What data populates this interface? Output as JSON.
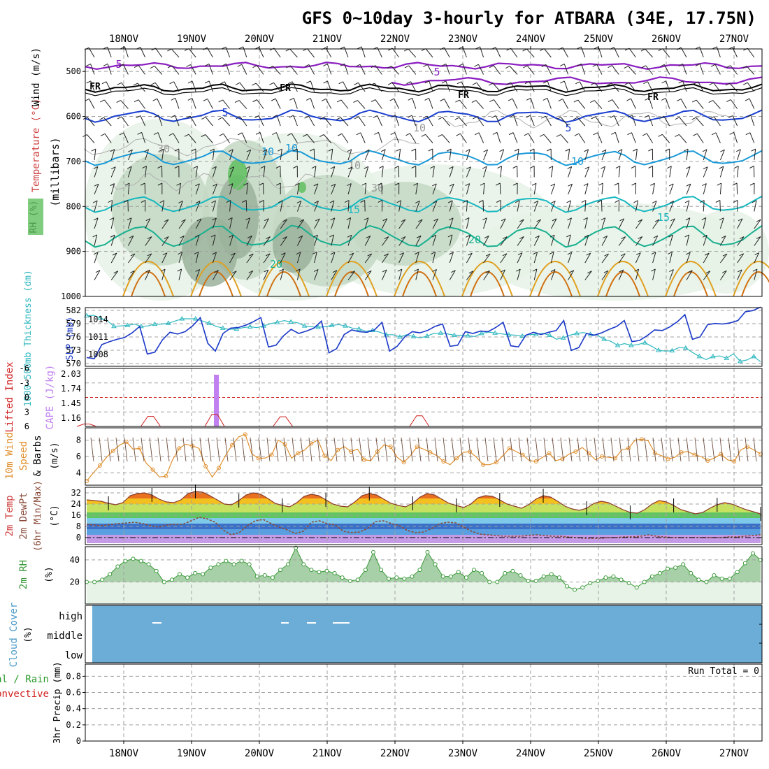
{
  "title": "GFS 0~10day 3-hourly for ATBARA (34E, 17.75N)",
  "colors": {
    "grid": "#a0a0a0",
    "temp_500": "#8a1cc0",
    "temp_fr": "#000000",
    "temp_5": "#1a3fd0",
    "temp_10": "#1a9ad8",
    "temp_15": "#18b8c0",
    "temp_20": "#18b090",
    "temp_25": "#e0a020",
    "temp_30": "#d07010",
    "rh_light": "#e6f2e6",
    "rh_mid": "#c4d8c4",
    "rh_dark": "#9bb29b",
    "rh_green": "#60c060",
    "slp": "#1a38c8",
    "thickness": "#30b8c0",
    "cape": "#c080f0",
    "li": "#d02020",
    "wind10": "#e09030",
    "dewpt": "#8a4a3a",
    "rh2m": "#3a9a3a",
    "cloud": "#6badd6"
  },
  "chart_data": [
    {
      "type": "contour",
      "panel": "upper-air",
      "ylabel": "(millibars)",
      "legend_labels": [
        "RH (%)",
        "Temperature (°C)",
        "Wind (m/s)"
      ],
      "y_ticks": [
        "500",
        "600",
        "700",
        "800",
        "900",
        "1000"
      ],
      "contour_labels": [
        "5",
        "5",
        "FR",
        "FR",
        "FR",
        "FR",
        "5",
        "5",
        "10",
        "10",
        "10",
        "10",
        "30",
        "30",
        "10",
        "15",
        "15",
        "20",
        "20"
      ],
      "x_labels_top": [
        "18NOV",
        "19NOV",
        "20NOV",
        "21NOV",
        "22NOV",
        "23NOV",
        "24NOV",
        "25NOV",
        "26NOV",
        "27NOV"
      ]
    },
    {
      "type": "line",
      "panel": "slp-thickness",
      "ylabel_left": "1000~500mb Thickness (dm)",
      "ylabel_right": "SLP (mb)",
      "left_ticks": [
        "582",
        "579",
        "576",
        "573",
        "570"
      ],
      "right_ticks": [
        "1014",
        "1011",
        "1008"
      ],
      "series": [
        {
          "name": "SLP",
          "unit": "mb",
          "values": [
            1007.5,
            1007.3,
            1009.7,
            1010.2,
            1010.6,
            1010.9,
            1011.7,
            1012.8,
            1008.1,
            1008.4,
            1010.5,
            1011.8,
            1011.5,
            1011.9,
            1012.9,
            1014.3,
            1009.9,
            1008.6,
            1011.6,
            1012.5,
            1012.6,
            1013.0,
            1013.6,
            1014.3,
            1009.3,
            1009.6,
            1011.2,
            1012.3,
            1011.6,
            1012.0,
            1012.5,
            1013.7,
            1008.3,
            1009.0,
            1011.4,
            1012.2,
            1011.9,
            1011.8,
            1012.2,
            1013.5,
            1008.6,
            1009.4,
            1011.0,
            1011.9,
            1011.7,
            1012.1,
            1012.8,
            1013.2,
            1009.4,
            1009.6,
            1011.9,
            1011.6,
            1012.0,
            1011.9,
            1012.6,
            1013.5,
            1009.5,
            1009.3,
            1011.3,
            1011.8,
            1011.4,
            1011.8,
            1012.1,
            1013.8,
            1008.7,
            1009.2,
            1011.6,
            1011.3,
            1011.7,
            1012.3,
            1012.8,
            1013.8,
            1010.2,
            1010.4,
            1011.2,
            1012.2,
            1012.1,
            1012.7,
            1013.6,
            1014.8,
            1010.6,
            1011.0,
            1013.1,
            1013.3,
            1013.2,
            1013.4,
            1013.8,
            1015.3,
            1015.5,
            1016.1
          ]
        },
        {
          "name": "Thickness",
          "unit": "dm",
          "values": [
            580.8,
            580.9,
            580.3,
            579.7,
            578.4,
            578.5,
            578.6,
            578.9,
            578.4,
            578.5,
            578.9,
            578.9,
            579.1,
            579.6,
            580.1,
            580.1,
            580.1,
            579.6,
            579.1,
            578.4,
            578.0,
            577.7,
            577.8,
            578.1,
            578.3,
            578.1,
            578.5,
            579.0,
            579.3,
            579.7,
            579.4,
            579.2,
            578.5,
            578.3,
            578.2,
            578.3,
            578.6,
            578.8,
            578.5,
            578.0,
            577.8,
            577.3,
            577.5,
            577.1,
            576.5,
            576.5,
            576.0,
            576.5,
            576.1,
            575.8,
            576.2,
            576.8,
            576.9,
            576.7,
            576.4,
            576.4,
            576.3,
            576.1,
            576.8,
            577.1,
            576.9,
            576.7,
            576.5,
            576.4,
            576.2,
            576.5,
            576.6,
            576.8,
            576.4,
            575.5,
            575.8,
            576.4,
            576.8,
            577.0,
            576.6,
            576.4,
            575.5,
            575.0,
            574.1,
            574.5,
            574.1,
            574.3,
            574.7,
            573.9,
            573.0,
            572.8,
            572.9,
            573.6,
            573.5,
            572.5,
            571.6,
            570.9,
            571.6,
            571.7,
            571.2,
            572.2,
            570.5,
            570.8,
            571.6,
            570.4
          ]
        }
      ]
    },
    {
      "type": "bar",
      "panel": "cape-li",
      "ylabel_left": "Lifted Index",
      "ylabel_right": "CAPE (J/kg)",
      "li_ticks": [
        "-6",
        "-3",
        "0",
        "3",
        "6"
      ],
      "cape_ticks": [
        "2.03",
        "1.74",
        "1.45",
        "1.16"
      ],
      "cape_bar_index": 15,
      "li_bumps": [
        {
          "index": 0,
          "value": 5.5
        },
        {
          "index": 7.5,
          "value": 3.9
        },
        {
          "index": 15,
          "value": 3.5
        },
        {
          "index": 23,
          "value": 4.0
        },
        {
          "index": 39,
          "value": 3.8
        }
      ]
    },
    {
      "type": "line",
      "panel": "wind10m",
      "ylabel": "10m Wind Speed & Barbs (m/s)",
      "y_ticks": [
        "8",
        "6",
        "4"
      ],
      "series": [
        {
          "name": "10m Wind Speed",
          "unit": "m/s",
          "values": [
            3.0,
            4.0,
            4.9,
            5.9,
            6.7,
            7.4,
            7.8,
            6.9,
            7.0,
            5.2,
            4.4,
            3.5,
            3.6,
            5.6,
            7.0,
            7.5,
            7.3,
            7.0,
            4.8,
            3.5,
            4.6,
            6.1,
            7.4,
            8.4,
            8.7,
            6.3,
            5.8,
            5.8,
            6.2,
            8.0,
            7.5,
            5.8,
            6.4,
            6.8,
            7.6,
            8.0,
            6.1,
            5.5,
            6.8,
            7.2,
            6.6,
            6.9,
            5.6,
            5.5,
            6.6,
            7.4,
            7.2,
            5.9,
            5.3,
            6.1,
            7.2,
            6.9,
            6.5,
            6.1,
            5.4,
            5.0,
            5.8,
            6.5,
            6.6,
            5.9,
            5.0,
            5.0,
            5.3,
            6.1,
            7.0,
            6.6,
            6.2,
            5.5,
            5.4,
            5.9,
            6.4,
            5.5,
            5.7,
            6.3,
            6.6,
            7.1,
            6.4,
            5.6,
            6.0,
            5.9,
            5.8,
            6.8,
            7.0,
            8.0,
            8.1,
            7.9,
            6.4,
            6.1,
            5.7,
            5.9,
            6.5,
            6.6,
            6.2,
            6.0,
            5.5,
            5.8,
            6.3,
            5.6,
            5.4,
            6.8,
            7.2,
            6.8,
            6.3
          ]
        }
      ]
    },
    {
      "type": "area",
      "panel": "temp2m",
      "ylabel": "2m Temp 2m DewPt (6hr Min/Max) (°C)",
      "y_ticks": [
        "32",
        "24",
        "16",
        "8",
        "0"
      ],
      "series": [
        {
          "name": "2m Temp",
          "unit": "°C",
          "values": [
            27,
            26.5,
            26,
            24.5,
            23.5,
            25,
            30,
            31.5,
            32,
            30.5,
            27.5,
            25.5,
            25,
            27,
            31.5,
            33,
            32.5,
            30,
            27,
            24,
            23.5,
            26.5,
            30.5,
            32,
            31,
            28,
            24.5,
            23,
            22,
            25,
            29.5,
            31,
            30,
            27,
            24,
            22.5,
            22,
            25.5,
            30,
            31.5,
            30.5,
            27.5,
            24.5,
            23,
            22,
            24.5,
            29,
            31.5,
            30.5,
            27.5,
            24.5,
            23,
            21.5,
            24,
            28.5,
            30,
            29.5,
            27,
            24,
            22.5,
            21,
            23.5,
            27.5,
            30,
            29,
            26,
            22.5,
            20.5,
            19.5,
            21,
            24.5,
            26,
            25,
            22.5,
            20,
            18,
            17.5,
            20,
            24,
            26.5,
            25.5,
            23,
            20,
            18.5,
            17,
            18,
            21,
            23.5,
            25,
            24,
            22,
            20,
            18.5,
            17
          ]
        },
        {
          "name": "2m DewPt",
          "unit": "°C",
          "values": [
            9.5,
            9,
            8.5,
            9.5,
            10,
            10.5,
            11,
            10,
            8.5,
            7.5,
            9,
            9.5,
            9.5,
            12,
            14.5,
            13.5,
            11,
            5.5,
            2,
            3.5,
            8.5,
            12,
            13,
            10,
            7.5,
            5.5,
            3,
            4.5,
            11,
            12,
            10,
            9,
            4.5,
            3.5,
            4,
            6.5,
            11.5,
            12,
            10,
            8.5,
            5,
            3.5,
            4,
            6.5,
            10,
            11,
            10.5,
            7.5,
            4.5,
            2.5,
            2,
            1.5,
            1,
            1,
            1,
            1.5,
            2,
            1.5,
            1,
            1,
            0.5,
            0,
            -0.5,
            -0.5,
            -0.5,
            0,
            0,
            0.5,
            0.5,
            1,
            2,
            1,
            0.5,
            0,
            0,
            0,
            0,
            0,
            0,
            0,
            0.5,
            0.5,
            1,
            1.5,
            2
          ]
        }
      ]
    },
    {
      "type": "area",
      "panel": "rh2m",
      "ylabel": "2m RH (%)",
      "y_ticks": [
        "40",
        "20"
      ],
      "series": [
        {
          "name": "2m RH",
          "unit": "%",
          "values": [
            20,
            20,
            22,
            27,
            34,
            39,
            41,
            39,
            36,
            30,
            20,
            22,
            27,
            24,
            28,
            27,
            33,
            36,
            39,
            36,
            39,
            36,
            25,
            26,
            24,
            31,
            36,
            51,
            36,
            31,
            29,
            30,
            28,
            24,
            21,
            22,
            31,
            47,
            31,
            23,
            24,
            23,
            25,
            31,
            47,
            36,
            25,
            25,
            29,
            24,
            31,
            28,
            20,
            20,
            28,
            30,
            26,
            21,
            21,
            25,
            27,
            24,
            16,
            13,
            15,
            19,
            21,
            24,
            25,
            22,
            19,
            15,
            20,
            25,
            28,
            32,
            33,
            36,
            28,
            22,
            20,
            26,
            23,
            23,
            29,
            37,
            46,
            40
          ]
        }
      ]
    },
    {
      "type": "heatmap",
      "panel": "cloud",
      "ylabel": "Cloud Cover (%)",
      "levels": [
        "high",
        "middle",
        "low"
      ]
    },
    {
      "type": "bar",
      "panel": "precip",
      "ylabel": "3hr Precip (mm)",
      "legend_left": [
        "Total / Rain",
        "Convective"
      ],
      "y_ticks": [
        "0.8",
        "0.6",
        "0.4",
        "0.2",
        "0"
      ],
      "run_total": "Run Total = 0",
      "x_labels_bottom": [
        "18NOV",
        "19NOV",
        "20NOV",
        "21NOV",
        "22NOV",
        "23NOV",
        "24NOV",
        "25NOV",
        "26NOV",
        "27NOV"
      ]
    }
  ]
}
